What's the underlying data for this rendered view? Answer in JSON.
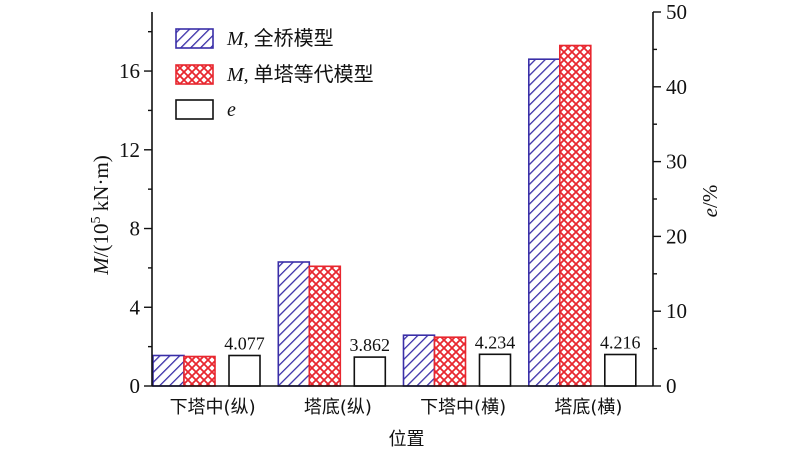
{
  "chart_data": {
    "type": "bar",
    "categories": [
      "下塔中(纵)",
      "塔底(纵)",
      "下塔中(横)",
      "塔底(横)"
    ],
    "series": [
      {
        "name": "M, 全桥模型",
        "axis": "left",
        "values": [
          1.55,
          6.3,
          2.58,
          16.6
        ],
        "color": "#3a2fa8",
        "pattern": "diagonal-hatch"
      },
      {
        "name": "M, 单塔等代模型",
        "axis": "left",
        "values": [
          1.5,
          6.08,
          2.48,
          17.3
        ],
        "color": "#e8272f",
        "pattern": "crosshatch"
      },
      {
        "name": "e",
        "axis": "right",
        "values": [
          4.077,
          3.862,
          4.234,
          4.216
        ],
        "color": "#111111",
        "pattern": "none"
      }
    ],
    "data_labels": [
      "4.077",
      "3.862",
      "4.234",
      "4.216"
    ],
    "xlabel": "位置",
    "ylabel_left": {
      "prefix": "M",
      "body": "/(10",
      "sup": "5",
      "suffix": " kN·m)"
    },
    "ylabel_right": {
      "prefix": "e",
      "body": "/%"
    },
    "ylim_left": [
      0,
      19
    ],
    "ylim_right": [
      0,
      50
    ],
    "yticks_left": [
      "0",
      "4",
      "8",
      "12",
      "16"
    ],
    "yticks_right": [
      "0",
      "10",
      "20",
      "30",
      "40",
      "50"
    ],
    "legend": {
      "placement": "top-left",
      "entries": [
        {
          "italic": "M",
          "text": ", 全桥模型"
        },
        {
          "italic": "M",
          "text": ", 单塔等代模型"
        },
        {
          "italic": "e",
          "text": ""
        }
      ]
    },
    "grid": false
  }
}
